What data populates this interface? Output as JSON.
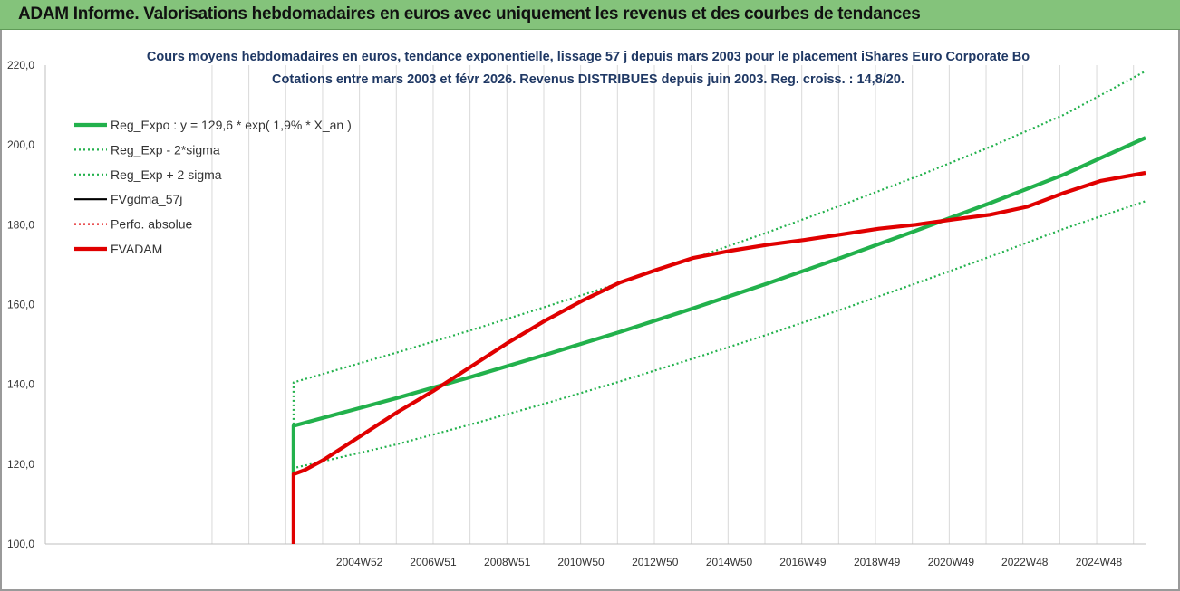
{
  "banner": {
    "title": "ADAM Informe. Valorisations hebdomadaires en euros avec uniquement les revenus et des courbes de tendances"
  },
  "colors": {
    "banner_bg": "#84c37b",
    "reg_expo": "#22b14c",
    "sigma": "#22b14c",
    "fvgdma": "#000000",
    "perfo": "#e31a1c",
    "fvadam": "#e00000",
    "grid": "#d9d9d9"
  },
  "chart_data": {
    "type": "line",
    "title": "Cours moyens hebdomadaires en euros, tendance exponentielle, lissage 57 j depuis mars 2003 pour le placement iShares Euro Corporate Bo",
    "subtitle": "Cotations entre mars 2003 et févr 2026. Revenus DISTRIBUES depuis juin 2003. Reg. croiss. : 14,8/20.",
    "xlabel": "",
    "ylabel": "",
    "xlim": [
      1996.5,
      2026.2
    ],
    "ylim": [
      100,
      220
    ],
    "y_ticks": [
      100,
      120,
      140,
      160,
      180,
      200,
      220
    ],
    "y_tick_labels": [
      "100,0",
      "120,0",
      "140,0",
      "160,0",
      "180,0",
      "200,0",
      "220,0"
    ],
    "x_tick_labels": [
      "2004W52",
      "2006W51",
      "2008W51",
      "2010W50",
      "2012W50",
      "2014W50",
      "2016W49",
      "2018W49",
      "2020W49",
      "2022W48",
      "2024W48"
    ],
    "x_tick_positions": [
      2004.98,
      2006.97,
      2008.97,
      2010.96,
      2012.96,
      2014.96,
      2016.95,
      2018.95,
      2020.95,
      2022.94,
      2024.94
    ],
    "grid": "vertical",
    "legend_position": "top-left",
    "series": [
      {
        "name": "Reg_Expo : y = 129,6 * exp( 1,9% *  X_an )",
        "style": "solid-thick",
        "color": "#22b14c",
        "x": [
          2003.2,
          2003.2,
          2006,
          2008,
          2010,
          2012,
          2014,
          2016,
          2018,
          2020,
          2022,
          2024,
          2026.2
        ],
        "y": [
          117.5,
          129.6,
          136.6,
          141.9,
          147.4,
          153.1,
          159.1,
          165.3,
          171.8,
          178.5,
          185.4,
          192.6,
          201.8
        ]
      },
      {
        "name": "Reg_Exp - 2*sigma",
        "style": "dotted",
        "color": "#22b14c",
        "x": [
          2003.2,
          2003.2,
          2006,
          2008,
          2010,
          2012,
          2014,
          2016,
          2018,
          2020,
          2022,
          2024,
          2026.2
        ],
        "y": [
          117.5,
          119.0,
          125.0,
          130.0,
          135.2,
          140.7,
          146.5,
          152.5,
          158.8,
          165.3,
          172.0,
          179.0,
          185.9
        ]
      },
      {
        "name": "Reg_Exp + 2 sigma",
        "style": "dotted",
        "color": "#22b14c",
        "x": [
          2003.2,
          2003.2,
          2006,
          2008,
          2010,
          2012,
          2014,
          2016,
          2018,
          2020,
          2022,
          2024,
          2026.2
        ],
        "y": [
          117.5,
          140.5,
          148.0,
          153.6,
          159.4,
          165.4,
          171.6,
          178.1,
          184.9,
          192.0,
          199.5,
          207.6,
          218.5
        ]
      },
      {
        "name": "FVgdma_57j",
        "style": "solid",
        "color": "#000000",
        "x": [],
        "y": []
      },
      {
        "name": "Perfo. absolue",
        "style": "dotted",
        "color": "#e31a1c",
        "x": [],
        "y": []
      },
      {
        "name": "FVADAM",
        "style": "solid-thick",
        "color": "#e00000",
        "x": [
          2003.2,
          2003.2,
          2003.5,
          2004,
          2005,
          2006,
          2007,
          2008,
          2009,
          2010,
          2011,
          2012,
          2013,
          2014,
          2015,
          2016,
          2017,
          2018,
          2019,
          2020,
          2021,
          2022,
          2023,
          2024,
          2025,
          2026.2
        ],
        "y": [
          100,
          117.5,
          118.5,
          121.0,
          127.0,
          133.0,
          138.5,
          144.5,
          150.5,
          156.0,
          161.0,
          165.5,
          168.7,
          171.7,
          173.5,
          175.0,
          176.2,
          177.6,
          179.0,
          180.0,
          181.3,
          182.5,
          184.5,
          188.0,
          191.0,
          193.0
        ]
      }
    ]
  }
}
